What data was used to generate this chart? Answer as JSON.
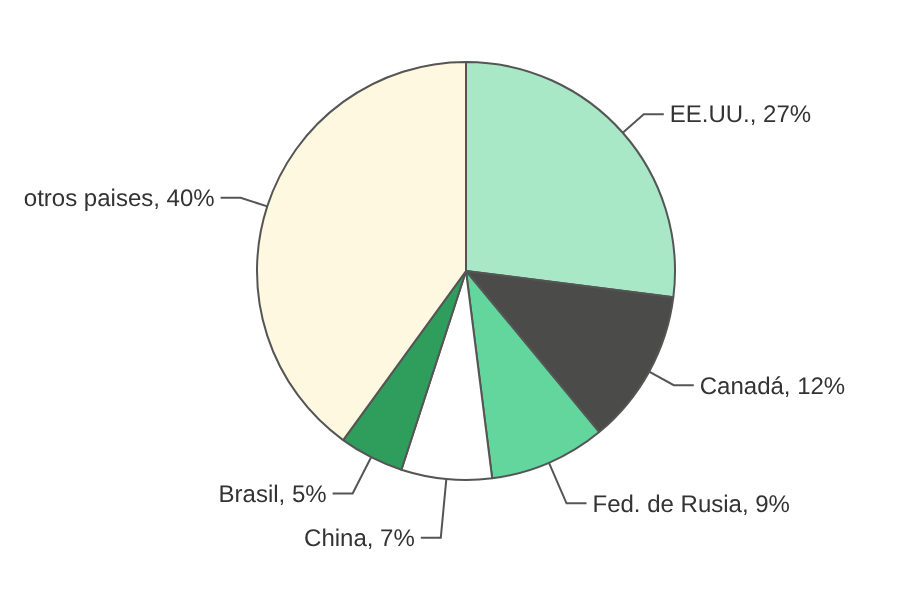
{
  "chart_data": {
    "type": "pie",
    "categories": [
      "EE.UU.",
      "Canadá",
      "Fed. de Rusia",
      "China",
      "Brasil",
      "otros paises"
    ],
    "values": [
      27,
      12,
      9,
      7,
      5,
      40
    ],
    "value_labels": [
      "27%",
      "12%",
      "9%",
      "7%",
      "5%",
      "40%"
    ],
    "colors": [
      "#a9e8c6",
      "#4b4b49",
      "#62d69c",
      "#ffffff",
      "#2f9d5c",
      "#fdf8df"
    ],
    "legend": false
  }
}
